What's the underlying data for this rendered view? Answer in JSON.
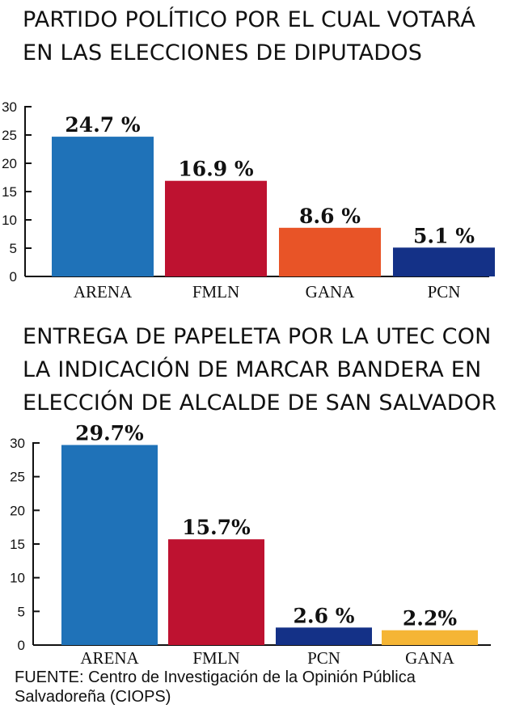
{
  "chart_data": [
    {
      "type": "bar",
      "title": "PARTIDO POLÍTICO POR EL CUAL VOTARÁ EN LAS ELECCIONES DE DIPUTADOS",
      "categories": [
        "ARENA",
        "FMLN",
        "GANA",
        "PCN"
      ],
      "values": [
        24.7,
        16.9,
        8.6,
        5.1
      ],
      "value_labels": [
        "24.7 %",
        "16.9 %",
        "8.6 %",
        "5.1 %"
      ],
      "colors": [
        "#1f72b8",
        "#be1230",
        "#e85427",
        "#143187"
      ],
      "ylim": [
        0,
        30
      ],
      "yticks": [
        0,
        5,
        10,
        15,
        20,
        25,
        30
      ],
      "grid": false,
      "legend": "none"
    },
    {
      "type": "bar",
      "title": "ENTREGA DE PAPELETA POR LA UTEC CON LA INDICACIÓN DE MARCAR BANDERA EN ELECCIÓN DE ALCALDE DE SAN SALVADOR",
      "categories": [
        "ARENA",
        "FMLN",
        "PCN",
        "GANA"
      ],
      "values": [
        29.7,
        15.7,
        2.6,
        2.2
      ],
      "value_labels": [
        "29.7%",
        "15.7%",
        "2.6 %",
        "2.2%"
      ],
      "colors": [
        "#1f72b8",
        "#be1230",
        "#143187",
        "#f5b535"
      ],
      "ylim": [
        0,
        30
      ],
      "yticks": [
        0,
        5,
        10,
        15,
        20,
        25,
        30
      ],
      "grid": false,
      "legend": "none"
    }
  ],
  "source": "FUENTE:  Centro de Investigación de la Opinión Pública Salvadoreña (CIOPS)"
}
